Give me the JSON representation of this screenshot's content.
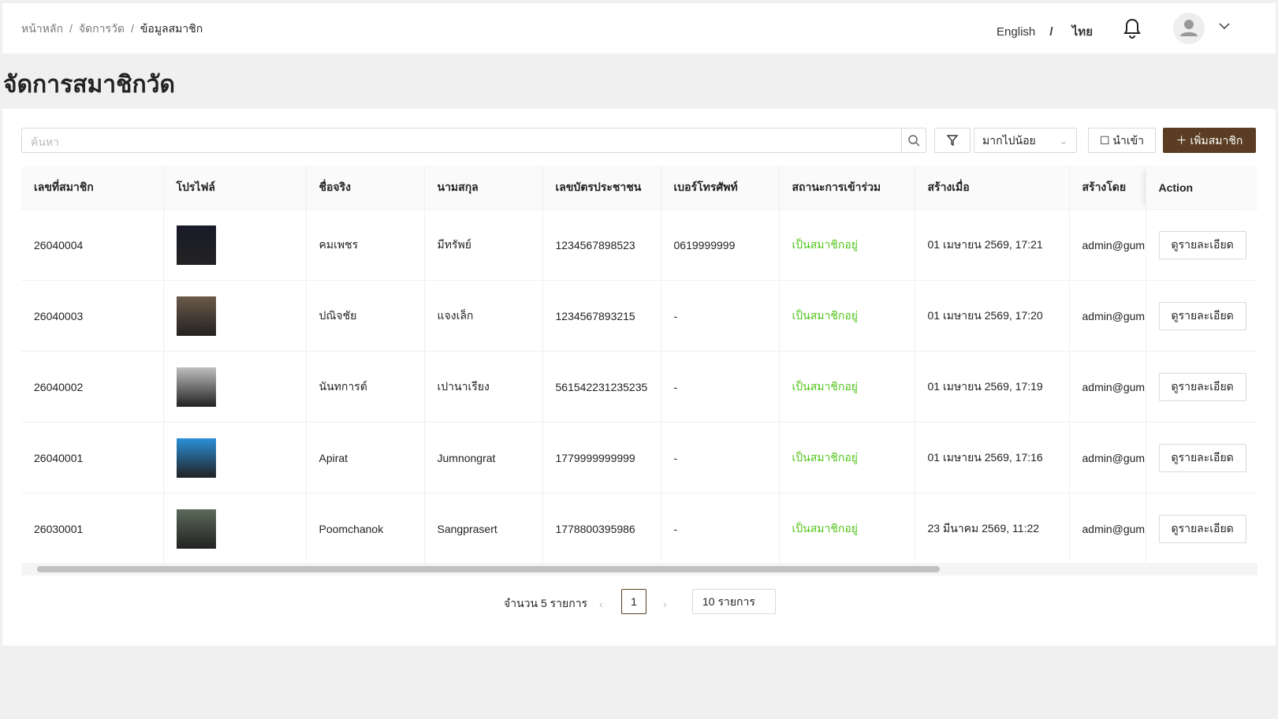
{
  "header": {
    "breadcrumb": [
      "หน้าหลัก",
      "จัดการวัด",
      "ข้อมูลสมาชิก"
    ],
    "languages": [
      "English",
      "ไทย"
    ],
    "separator": "/"
  },
  "title": "จัดการสมาชิกวัด",
  "toolbar": {
    "search_placeholder": "ค้นหา",
    "sort": "มากไปน้อย",
    "import": "นำเข้า",
    "add": "เพิ่มสมาชิก"
  },
  "table": {
    "columns": [
      "เลขที่สมาชิก",
      "โปรไฟล์",
      "ชื่อจริง",
      "นามสกุล",
      "เลขบัตรประชาชน",
      "เบอร์โทรศัพท์",
      "สถานะการเข้าร่วม",
      "สร้างเมื่อ",
      "สร้างโดย",
      "Action"
    ],
    "rows": [
      [
        "26040004",
        "คมเพชร",
        "มีทรัพย์",
        "1234567898523",
        "0619999999",
        "เป็นสมาชิกอยู่",
        "01 เมษายน 2569, 17:21",
        "admin@gum",
        "ดูรายละเอียด"
      ],
      [
        "26040003",
        "ปณิจชัย",
        "แจงเล็ก",
        "1234567893215",
        "-",
        "เป็นสมาชิกอยู่",
        "01 เมษายน 2569, 17:20",
        "admin@gum",
        "ดูรายละเอียด"
      ],
      [
        "26040002",
        "นันทการต์",
        "เปานาเรียง",
        "561542231235235",
        "-",
        "เป็นสมาชิกอยู่",
        "01 เมษายน 2569, 17:19",
        "admin@gum",
        "ดูรายละเอียด"
      ],
      [
        "26040001",
        "Apirat",
        "Jumnongrat",
        "1779999999999",
        "-",
        "เป็นสมาชิกอยู่",
        "01 เมษายน 2569, 17:16",
        "admin@gum",
        "ดูรายละเอียด"
      ],
      [
        "26030001",
        "Poomchanok",
        "Sangprasert",
        "1778800395986",
        "-",
        "เป็นสมาชิกอยู่",
        "23 มีนาคม 2569, 11:22",
        "admin@gum",
        "ดูรายละเอียด"
      ]
    ]
  },
  "pagination": {
    "total": "จำนวน 5 รายการ",
    "page": "1",
    "page_size": "10 รายการ"
  }
}
